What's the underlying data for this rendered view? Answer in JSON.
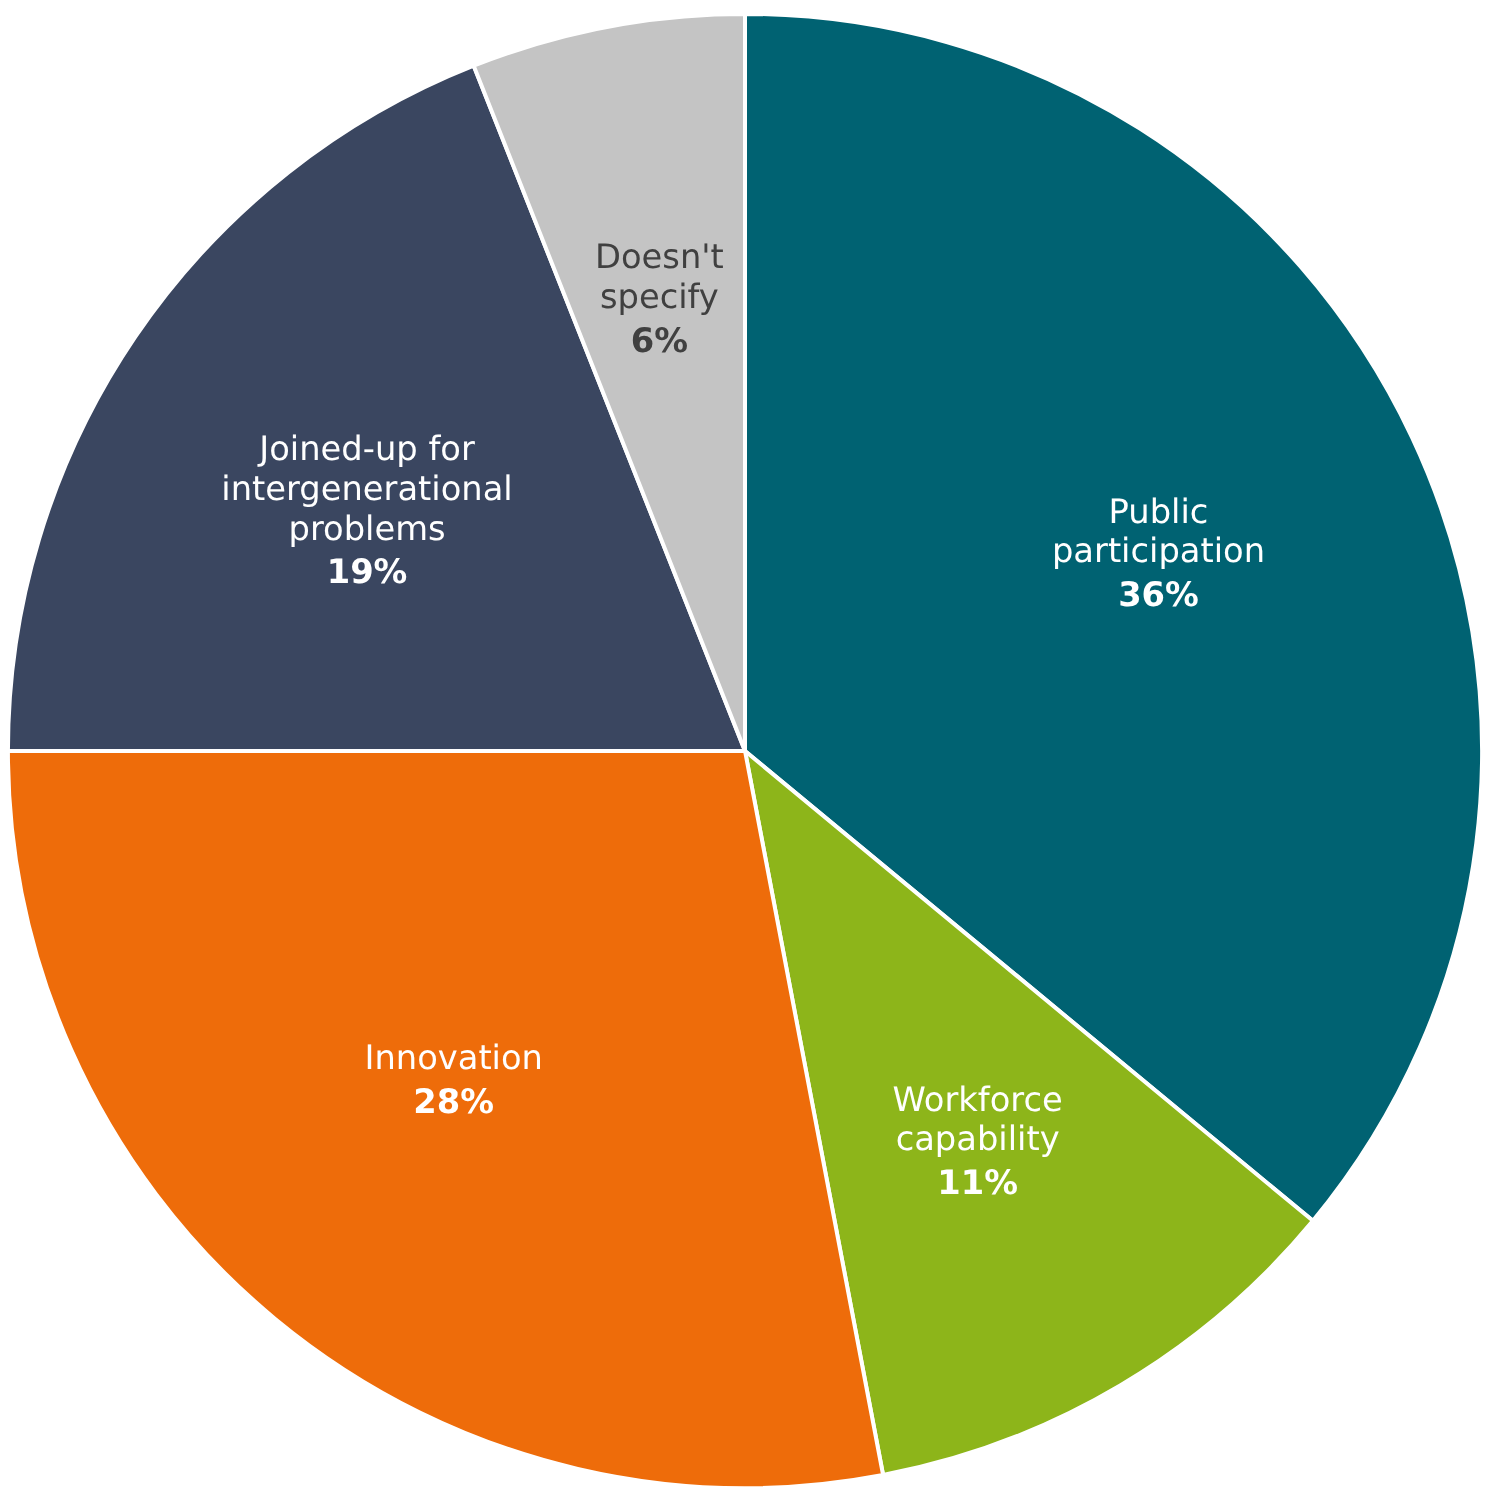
{
  "chart_data": {
    "type": "pie",
    "categories": [
      "Public\nparticipation",
      "Workforce\ncapability",
      "Innovation",
      "Joined-up for\nintergenerational\nproblems",
      "Doesn't\nspecify"
    ],
    "values": [
      36,
      11,
      28,
      19,
      6
    ],
    "colors": [
      "#006272",
      "#8db51a",
      "#ee6c0a",
      "#3a4660",
      "#c4c4c4"
    ],
    "value_labels": [
      "36%",
      "11%",
      "28%",
      "19%",
      "6%"
    ],
    "legend": false
  }
}
